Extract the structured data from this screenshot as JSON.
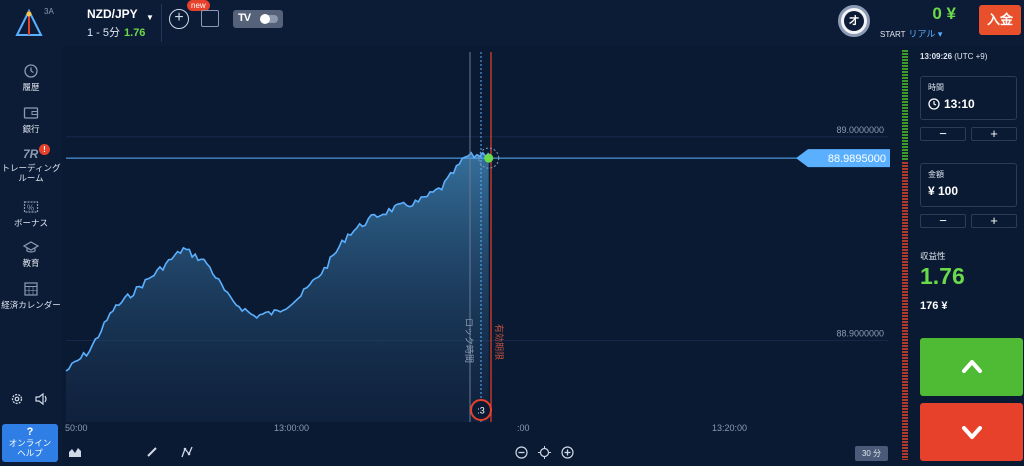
{
  "header": {
    "logo_label": "3A",
    "asset": {
      "name": "NZD/JPY",
      "timeframe": "1 - 5分",
      "payout": "1.76"
    },
    "new_badge": "new",
    "tv_label": "TV",
    "avatar_letter": "オ",
    "balance": "0 ¥",
    "account_prefix": "START",
    "account_mode": "リアル ▾",
    "deposit_label": "入金"
  },
  "sidebar": {
    "items": [
      {
        "label": "履歴",
        "icon": "history-icon"
      },
      {
        "label": "銀行",
        "icon": "wallet-icon"
      },
      {
        "label": "トレーディング\nルーム",
        "icon": "trading-room-icon",
        "badge": "!"
      },
      {
        "label": "ボーナス",
        "icon": "bonus-icon"
      },
      {
        "label": "教育",
        "icon": "education-icon"
      },
      {
        "label": "経済カレンダー",
        "icon": "calendar-icon"
      }
    ],
    "help": {
      "q": "?",
      "label": "オンライン\nヘルプ"
    }
  },
  "chart": {
    "price_labels": [
      "89.0000000",
      "88.9000000"
    ],
    "current_price": "88.9895000",
    "time_labels": [
      "50:00",
      "13:00:00",
      ":00",
      "13:20:00"
    ],
    "lock_label": "ロック時間",
    "expiry_label": "有効期限",
    "countdown": ":3",
    "timeframe_badge": "30 分"
  },
  "chart_data": {
    "type": "area",
    "title": "",
    "ylim": [
      88.86,
      89.02
    ],
    "x_range": [
      "12:50",
      "13:25"
    ],
    "points": [
      [
        "12:50",
        88.885
      ],
      [
        "12:51",
        88.895
      ],
      [
        "12:52",
        88.915
      ],
      [
        "12:53",
        88.925
      ],
      [
        "12:54",
        88.935
      ],
      [
        "12:55",
        88.945
      ],
      [
        "12:56",
        88.938
      ],
      [
        "12:57",
        88.92
      ],
      [
        "12:58",
        88.912
      ],
      [
        "12:59",
        88.914
      ],
      [
        "13:00",
        88.922
      ],
      [
        "13:01",
        88.935
      ],
      [
        "13:02",
        88.952
      ],
      [
        "13:03",
        88.96
      ],
      [
        "13:04",
        88.965
      ],
      [
        "13:05",
        88.968
      ],
      [
        "13:06",
        88.975
      ],
      [
        "13:07",
        88.99
      ],
      [
        "13:08",
        88.992
      ]
    ],
    "current_price": 88.9895
  },
  "panel": {
    "clock_time": "13:09:26",
    "clock_tz": "(UTC +9)",
    "time_label": "時間",
    "time_value": "13:10",
    "amount_label": "金額",
    "amount_value": "¥ 100",
    "minus": "−",
    "plus": "+",
    "payout_label": "収益性",
    "payout_value": "1.76",
    "payout_amount": "176 ¥"
  },
  "colors": {
    "up": "#4fba34",
    "down": "#e8412b",
    "accent": "#5ab0ff",
    "deposit": "#e8502c"
  }
}
